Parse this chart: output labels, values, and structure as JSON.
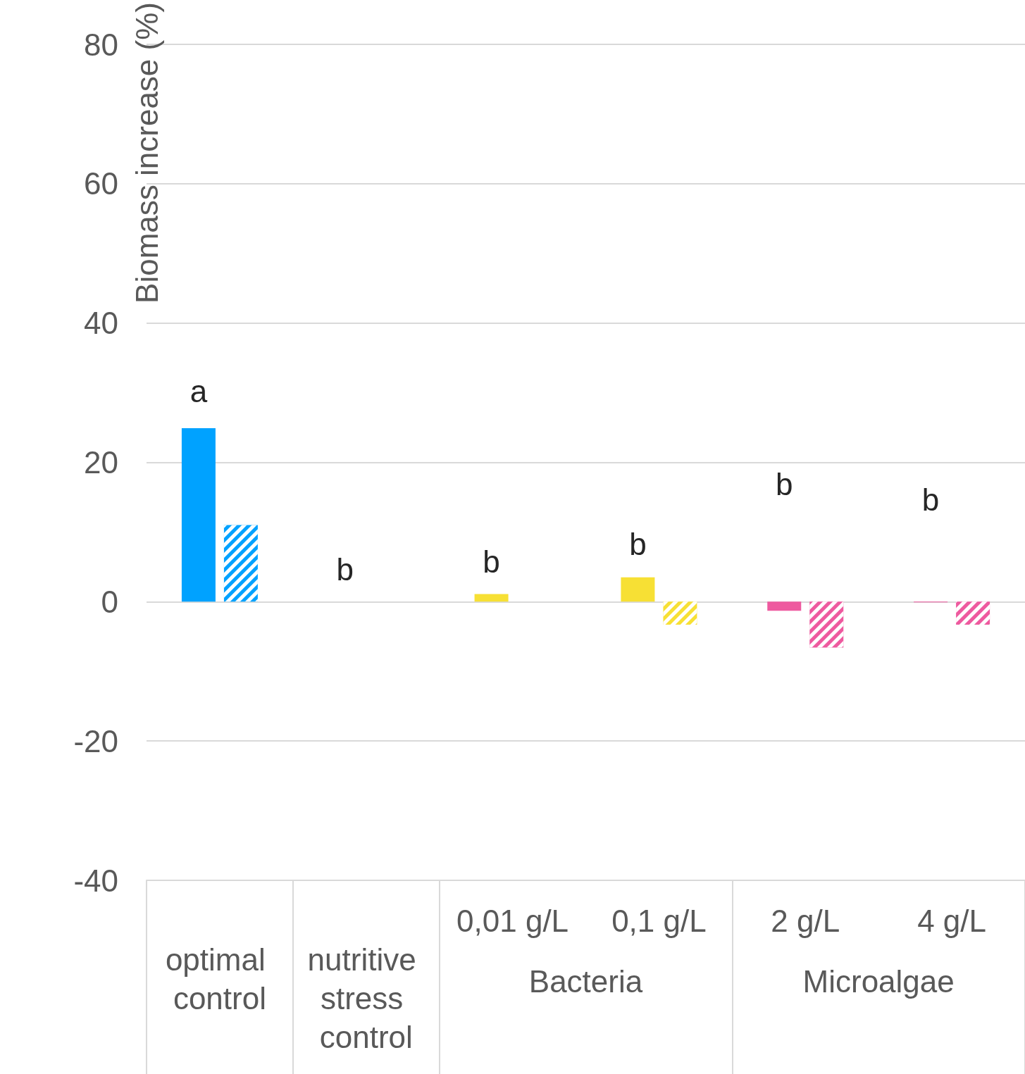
{
  "chart_data": {
    "type": "bar",
    "ylabel": "Biomass increase (%)",
    "categories": [
      "optimal control",
      "nutritive stress control",
      "0,01 g/L",
      "0,1 g/L",
      "2 g/L",
      "4 g/L"
    ],
    "series": [
      {
        "colors": [
          "#00a2ff",
          "#00a2ff",
          "#f7e034",
          "#f7e034",
          "#ee5a9f",
          "#ee5a9f"
        ],
        "values": [
          24.9,
          null,
          1.1,
          3.5,
          -1.3,
          -0.1
        ]
      },
      {
        "colors": [
          "#00a2ff",
          "#00a2ff",
          "#f7e034",
          "#f7e034",
          "#ee5a9f",
          "#ee5a9f"
        ],
        "values": [
          11.0,
          null,
          null,
          -3.3,
          -6.6,
          -3.3
        ]
      }
    ],
    "ylim": [
      -40,
      80
    ],
    "yticks": [
      -40,
      -20,
      0,
      20,
      40,
      60,
      80
    ],
    "grid": "y",
    "annotations": [
      "a",
      "b",
      "b",
      "b",
      "b",
      "b",
      "Bacteria",
      "Microalgae"
    ]
  }
}
